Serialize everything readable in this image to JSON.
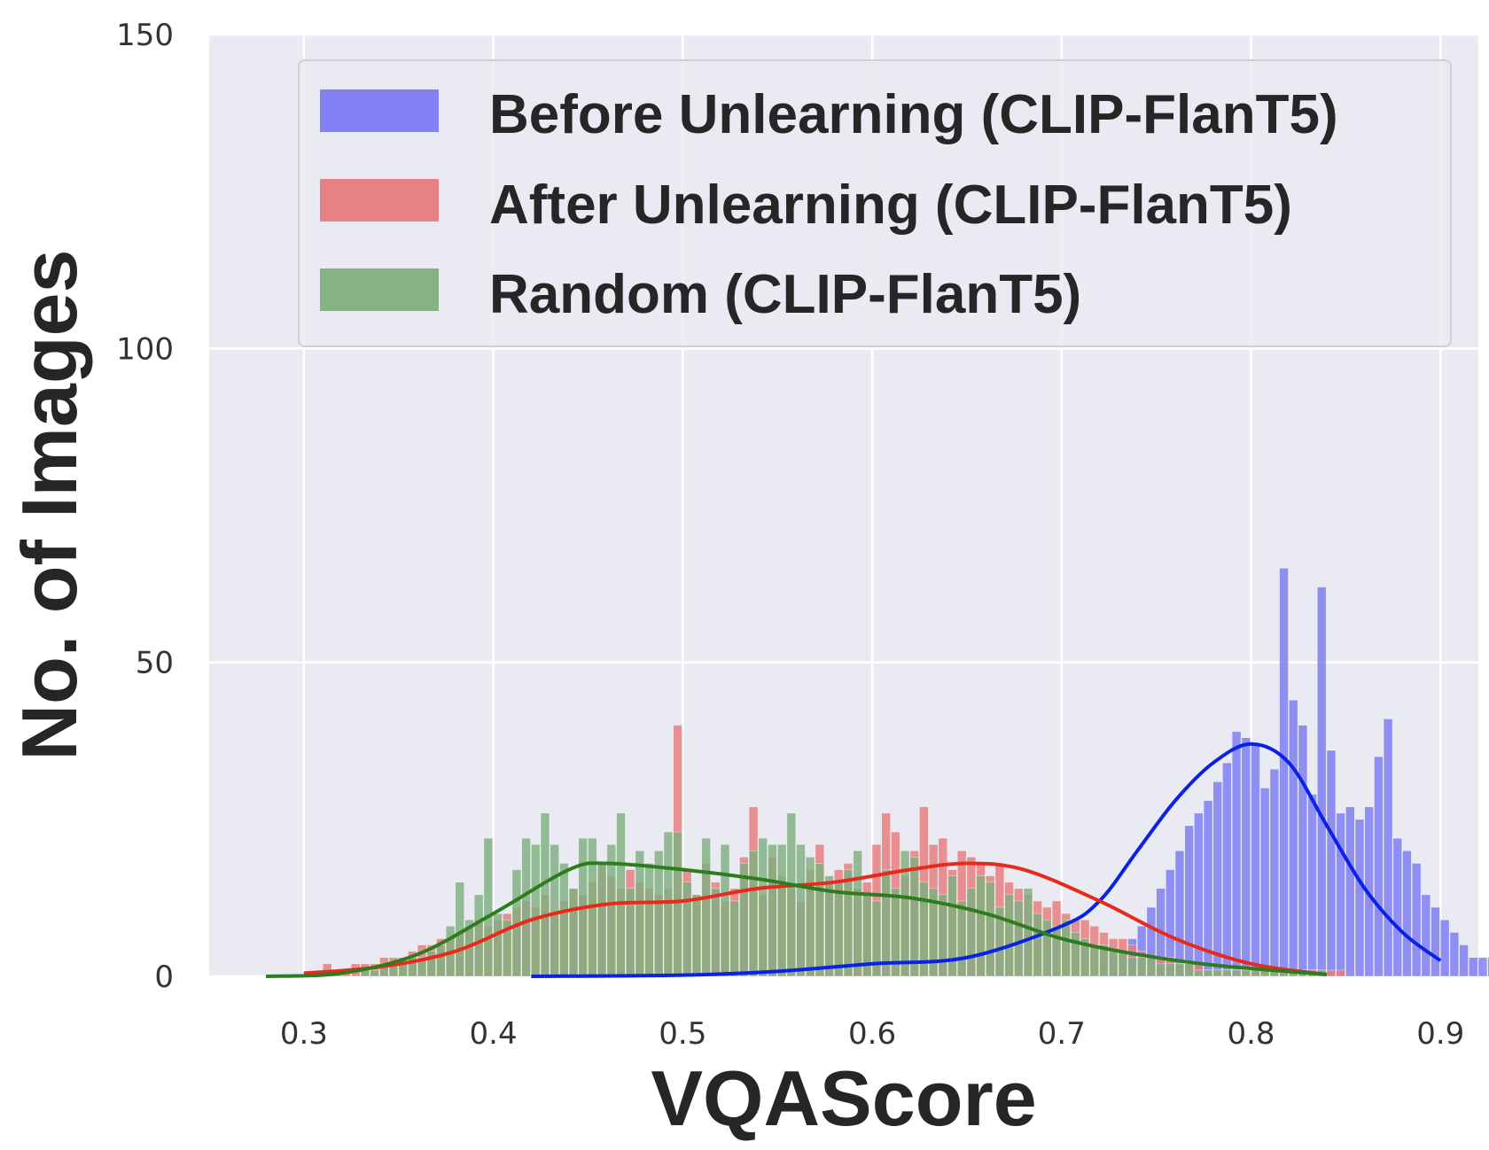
{
  "chart_data": {
    "type": "bar",
    "subtype": "histogram-with-kde",
    "title": "",
    "xlabel": "VQAScore",
    "ylabel": "No. of Images",
    "xlim": [
      0.25,
      0.92
    ],
    "ylim": [
      0,
      150
    ],
    "xticks": [
      0.3,
      0.4,
      0.5,
      0.6,
      0.7,
      0.8,
      0.9
    ],
    "xtick_labels": [
      "0.3",
      "0.4",
      "0.5",
      "0.6",
      "0.7",
      "0.8",
      "0.9"
    ],
    "yticks": [
      0,
      50,
      100,
      150
    ],
    "ytick_labels": [
      "0",
      "50",
      "100",
      "150"
    ],
    "grid": true,
    "legend_position": "top-right",
    "bin_width": 0.005,
    "series": [
      {
        "name": "Before Unlearning (CLIP-FlanT5)",
        "color": "#0000ff",
        "bar_color": "#7b7bf2",
        "kde_color": "#0a22e6",
        "bin_start": 0.72,
        "values": [
          2,
          3,
          4,
          6,
          8,
          11,
          14,
          17,
          20,
          24,
          26,
          28,
          31,
          34,
          39,
          38,
          37,
          30,
          33,
          65,
          44,
          40,
          29,
          62,
          36,
          26,
          27,
          25,
          27,
          35,
          41,
          22,
          20,
          18,
          13,
          11,
          9,
          7,
          5,
          3,
          3,
          3
        ],
        "kde_x": [
          0.42,
          0.5,
          0.55,
          0.6,
          0.65,
          0.7,
          0.72,
          0.74,
          0.76,
          0.78,
          0.8,
          0.82,
          0.84,
          0.86,
          0.88,
          0.9
        ],
        "kde_y": [
          0,
          0.2,
          0.8,
          2,
          3,
          8,
          12,
          20,
          28,
          34,
          37,
          34,
          24,
          14,
          7,
          2.5
        ]
      },
      {
        "name": "After Unlearning (CLIP-FlanT5)",
        "color": "#ff0000",
        "bar_color": "#e87b7b",
        "kde_color": "#e82a1c",
        "bin_start": 0.31,
        "values": [
          2,
          1,
          1,
          2,
          2,
          2,
          3,
          3,
          3,
          4,
          5,
          5,
          6,
          6,
          7,
          8,
          9,
          8,
          9,
          10,
          11,
          12,
          11,
          13,
          10,
          12,
          14,
          13,
          15,
          18,
          16,
          14,
          17,
          15,
          14,
          13,
          14,
          40,
          17,
          13,
          18,
          15,
          12,
          14,
          19,
          27,
          13,
          19,
          16,
          14,
          12,
          17,
          21,
          15,
          17,
          18,
          14,
          15,
          21,
          26,
          23,
          16,
          20,
          27,
          21,
          22,
          17,
          20,
          19,
          18,
          16,
          18,
          15,
          14,
          13,
          12,
          11,
          12,
          10,
          9,
          9,
          8,
          7,
          6,
          6,
          5,
          4,
          3,
          3,
          3,
          2,
          2,
          2,
          1,
          1,
          1,
          1,
          1,
          1,
          1,
          1,
          1,
          1,
          1,
          1,
          1,
          1,
          1
        ],
        "kde_x": [
          0.3,
          0.34,
          0.38,
          0.42,
          0.46,
          0.5,
          0.54,
          0.58,
          0.62,
          0.65,
          0.68,
          0.72,
          0.76,
          0.8,
          0.84
        ],
        "kde_y": [
          0.5,
          1.5,
          4,
          9,
          11.5,
          12,
          14,
          15,
          17,
          18,
          17,
          12,
          6,
          2,
          0.3
        ]
      },
      {
        "name": "Random (CLIP-FlanT5)",
        "color": "#008000",
        "bar_color": "#7fb07f",
        "kde_color": "#2d7d1e",
        "bin_start": 0.33,
        "values": [
          1,
          1,
          2,
          2,
          3,
          3,
          3,
          4,
          5,
          8,
          15,
          9,
          13,
          22,
          10,
          9,
          17,
          22,
          21,
          26,
          21,
          18,
          14,
          22,
          22,
          18,
          21,
          26,
          14,
          20,
          18,
          20,
          23,
          23,
          15,
          13,
          22,
          14,
          21,
          12,
          18,
          20,
          22,
          21,
          21,
          26,
          21,
          19,
          18,
          16,
          15,
          17,
          20,
          13,
          12,
          17,
          14,
          20,
          19,
          15,
          14,
          13,
          16,
          12,
          14,
          16,
          15,
          11,
          13,
          12,
          14,
          10,
          9,
          8,
          9,
          7,
          6,
          5,
          5,
          4,
          4,
          3,
          3,
          3,
          2,
          2,
          2,
          2,
          1,
          1,
          1,
          1,
          1,
          1,
          1,
          1,
          1,
          1,
          1,
          1,
          1,
          1
        ],
        "kde_x": [
          0.28,
          0.32,
          0.36,
          0.4,
          0.44,
          0.46,
          0.5,
          0.54,
          0.58,
          0.62,
          0.66,
          0.7,
          0.74,
          0.78,
          0.84
        ],
        "kde_y": [
          0,
          0.5,
          3.5,
          10,
          17,
          18,
          17,
          15.5,
          13.5,
          12.5,
          10,
          6,
          3.5,
          1.8,
          0.3
        ]
      }
    ]
  }
}
